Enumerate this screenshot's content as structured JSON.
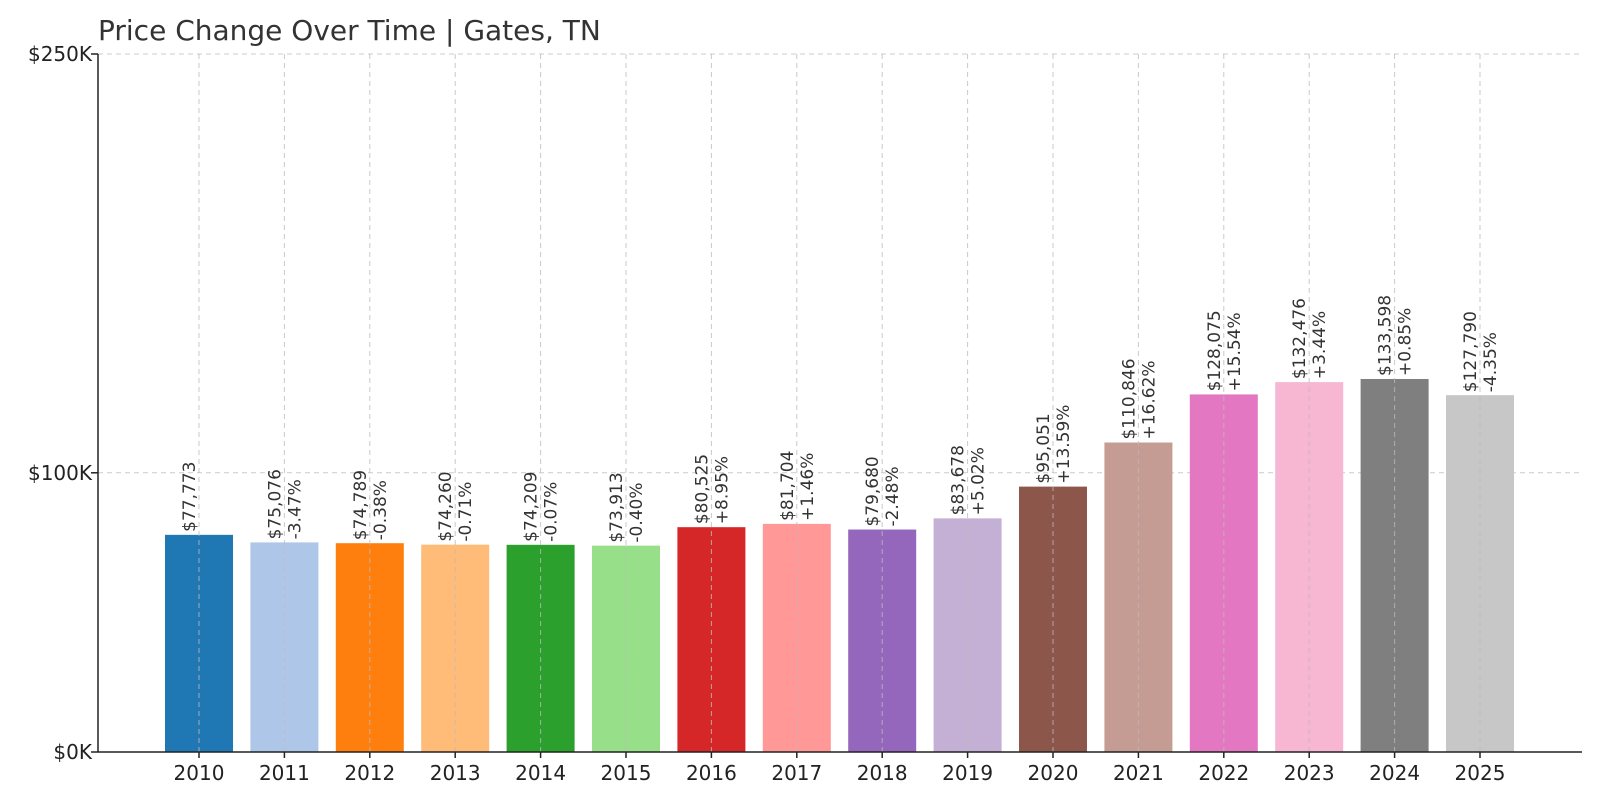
{
  "chart_data": {
    "type": "bar",
    "title": "Price Change Over Time | Gates, TN",
    "xlabel": "",
    "ylabel": "",
    "ylim": [
      0,
      250000
    ],
    "y_ticks": [
      {
        "value": 0,
        "label": "$0K"
      },
      {
        "value": 100000,
        "label": "$100K"
      },
      {
        "value": 250000,
        "label": "$250K"
      }
    ],
    "grid": true,
    "categories": [
      "2010",
      "2011",
      "2012",
      "2013",
      "2014",
      "2015",
      "2016",
      "2017",
      "2018",
      "2019",
      "2020",
      "2021",
      "2022",
      "2023",
      "2024",
      "2025"
    ],
    "values": [
      77773,
      75076,
      74789,
      74260,
      74209,
      73913,
      80525,
      81704,
      79680,
      83678,
      95051,
      110846,
      128075,
      132476,
      133598,
      127790
    ],
    "value_labels": [
      "$77,773",
      "$75,076",
      "$74,789",
      "$74,260",
      "$74,209",
      "$73,913",
      "$80,525",
      "$81,704",
      "$79,680",
      "$83,678",
      "$95,051",
      "$110,846",
      "$128,075",
      "$132,476",
      "$133,598",
      "$127,790"
    ],
    "change_labels": [
      "",
      "-3.47%",
      "-0.38%",
      "-0.71%",
      "-0.07%",
      "-0.40%",
      "+8.95%",
      "+1.46%",
      "-2.48%",
      "+5.02%",
      "+13.59%",
      "+16.62%",
      "+15.54%",
      "+3.44%",
      "+0.85%",
      "-4.35%"
    ],
    "colors": [
      "#1f77b4",
      "#aec7e8",
      "#ff7f0e",
      "#ffbb78",
      "#2ca02c",
      "#98df8a",
      "#d62728",
      "#ff9896",
      "#9467bd",
      "#c5b0d5",
      "#8c564b",
      "#c49c94",
      "#e377c2",
      "#f7b6d2",
      "#7f7f7f",
      "#c7c7c7"
    ]
  }
}
